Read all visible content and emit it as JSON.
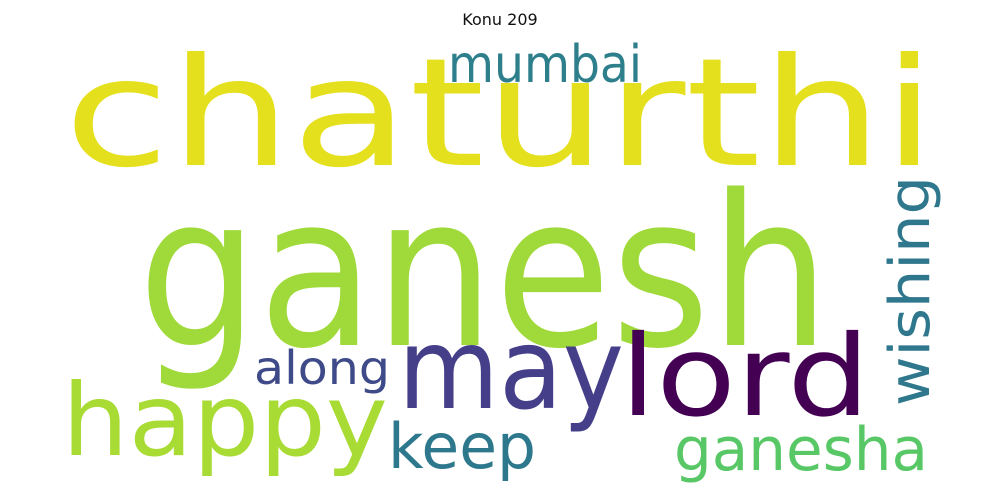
{
  "title": "Konu 209",
  "words": [
    {
      "text": "chaturthi",
      "color": "#e5e01e"
    },
    {
      "text": "ganesh",
      "color": "#a0d93a"
    },
    {
      "text": "may",
      "color": "#453f8a"
    },
    {
      "text": "lord",
      "color": "#440154"
    },
    {
      "text": "happy",
      "color": "#a8db34"
    },
    {
      "text": "mumbai",
      "color": "#2e7f8c"
    },
    {
      "text": "wishing",
      "color": "#2f778c"
    },
    {
      "text": "along",
      "color": "#3f4b89"
    },
    {
      "text": "keep",
      "color": "#2e788d"
    },
    {
      "text": "ganesha",
      "color": "#58c765"
    }
  ]
}
